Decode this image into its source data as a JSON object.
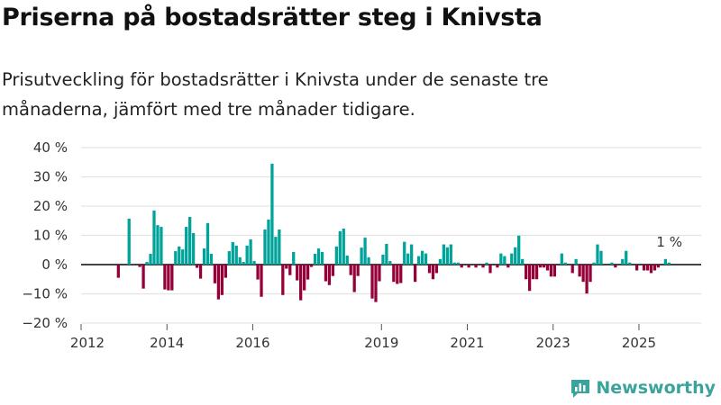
{
  "title": "Priserna på bostadsrätter steg i Knivsta",
  "subtitle": "Prisutveckling för bostadsrätter i Knivsta under de senaste tre månaderna, jämfört med tre månader tidigare.",
  "logo_text": "Newsworthy",
  "colors": {
    "positive": "#00a39a",
    "negative": "#960039",
    "grid": "#e3e3e3",
    "zero": "#444444"
  },
  "chart_data": {
    "type": "bar",
    "title": "Priserna på bostadsrätter steg i Knivsta",
    "xlabel": "",
    "ylabel": "",
    "ylim": [
      -20,
      40
    ],
    "yticks": [
      40,
      30,
      20,
      10,
      0,
      -10,
      -20
    ],
    "ytick_labels": [
      "40 %",
      "30 %",
      "20 %",
      "10 %",
      "0 %",
      "−10 %",
      "−20 %"
    ],
    "xticks": [
      2012,
      2014,
      2016,
      2019,
      2021,
      2023,
      2025
    ],
    "xtick_labels": [
      "2012",
      "2014",
      "2016",
      "2019",
      "2021",
      "2023",
      "2025"
    ],
    "xlim": [
      2012.0,
      2026.45
    ],
    "start_month": "2012-11",
    "frequency": "monthly",
    "annotation": "1 %",
    "values": [
      -4.5,
      0,
      0,
      15.7,
      0,
      0,
      -0.8,
      -8.2,
      0.9,
      3.7,
      18.5,
      13.5,
      12.9,
      -8.5,
      -8.8,
      -8.8,
      4.6,
      6.2,
      5.2,
      12.9,
      16.3,
      10.8,
      -1.1,
      -4.8,
      5.5,
      14.2,
      3.7,
      -6.4,
      -11.9,
      -10.4,
      -4.5,
      4.6,
      7.7,
      6.5,
      2.5,
      0.9,
      6.5,
      8.6,
      1.2,
      -5.1,
      -11,
      12,
      15.4,
      34.5,
      9.5,
      12,
      -10.4,
      -1.4,
      -3.6,
      4.3,
      -5.4,
      -12.2,
      -8.8,
      -5.1,
      -0.8,
      3.7,
      5.5,
      4.3,
      -5.7,
      -7.0,
      -3.9,
      6.2,
      11.4,
      12.3,
      3.1,
      -3.6,
      -9.4,
      -3.9,
      5.8,
      9.2,
      2.5,
      -11.6,
      -12.8,
      -5.7,
      3.4,
      7.1,
      1.2,
      -5.9,
      -6.6,
      -6.3,
      7.8,
      3.8,
      6.9,
      -5.9,
      2.9,
      4.7,
      3.8,
      -2.9,
      -5.0,
      -2.9,
      1.9,
      6.9,
      5.9,
      6.9,
      0.7,
      0.7,
      -1,
      0,
      -1,
      0,
      -1,
      0,
      -1,
      0.7,
      -2.9,
      0,
      -1,
      3.8,
      2.9,
      -1,
      3.8,
      5.9,
      9.9,
      1.9,
      -5,
      -9,
      -5,
      -5,
      -1,
      -1,
      -2,
      -4.1,
      -4.1,
      0,
      3.8,
      0.7,
      0,
      -2.9,
      1.9,
      -4.1,
      -5.9,
      -9.9,
      -5.9,
      0.7,
      6.9,
      4.7,
      0,
      0,
      0.7,
      -1,
      0,
      1.9,
      4.7,
      0.7,
      0,
      -2,
      0,
      -2,
      -2,
      -2.9,
      -2,
      -1,
      0,
      1.9,
      0.7
    ]
  }
}
